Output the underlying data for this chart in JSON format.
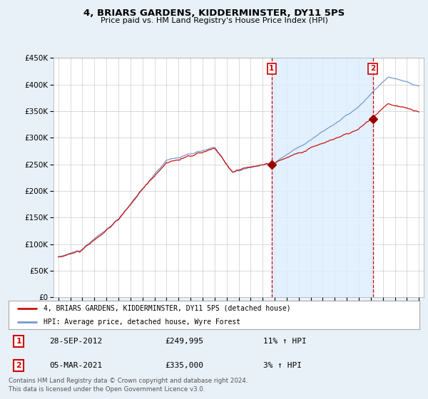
{
  "title": "4, BRIARS GARDENS, KIDDERMINSTER, DY11 5PS",
  "subtitle": "Price paid vs. HM Land Registry's House Price Index (HPI)",
  "legend_line1": "4, BRIARS GARDENS, KIDDERMINSTER, DY11 5PS (detached house)",
  "legend_line2": "HPI: Average price, detached house, Wyre Forest",
  "footer1": "Contains HM Land Registry data © Crown copyright and database right 2024.",
  "footer2": "This data is licensed under the Open Government Licence v3.0.",
  "annotation1": {
    "num": "1",
    "date": "28-SEP-2012",
    "price": "£249,995",
    "hpi": "11% ↑ HPI"
  },
  "annotation2": {
    "num": "2",
    "date": "05-MAR-2021",
    "price": "£335,000",
    "hpi": "3% ↑ HPI"
  },
  "hpi_color": "#7799cc",
  "price_color": "#cc1111",
  "background_color": "#e8f0f8",
  "plot_bg_color": "#ffffff",
  "shade_color": "#ddeeff",
  "ylim": [
    0,
    450000
  ],
  "yticks": [
    0,
    50000,
    100000,
    150000,
    200000,
    250000,
    300000,
    350000,
    400000,
    450000
  ],
  "sale1_x": 2012.75,
  "sale1_y": 249995,
  "sale2_x": 2021.17,
  "sale2_y": 335000,
  "xmin": 1994.6,
  "xmax": 2025.4
}
